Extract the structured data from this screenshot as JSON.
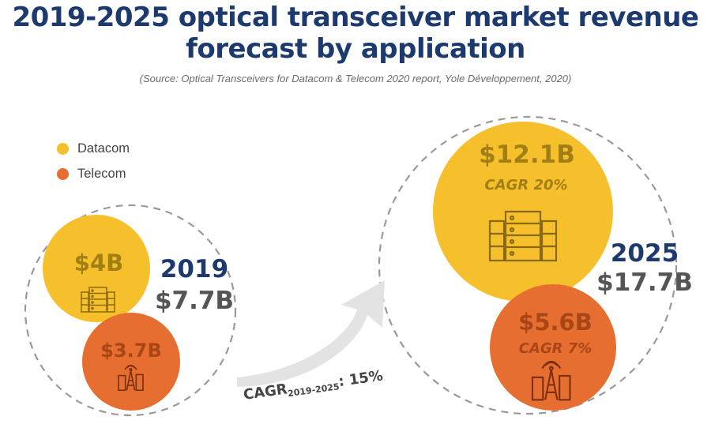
{
  "title_line1": "2019-2025 optical transceiver market revenue",
  "title_line2": "forecast by application",
  "source": "(Source: Optical Transceivers for Datacom & Telecom 2020 report, Yole Développement, 2020)",
  "legend": [
    {
      "name": "Datacom",
      "color": "#f6c02d"
    },
    {
      "name": "Telecom",
      "color": "#e66e30"
    }
  ],
  "icons": {
    "datacom": "server-rack-icon",
    "telecom": "cell-tower-city-icon"
  },
  "chart_data": {
    "type": "bubble",
    "unit": "$B",
    "categories": [
      "2019",
      "2025"
    ],
    "series": [
      {
        "name": "Datacom",
        "values": [
          4,
          12.1
        ]
      },
      {
        "name": "Telecom",
        "values": [
          3.7,
          5.6
        ]
      }
    ],
    "years": [
      {
        "year": "2019",
        "total_label": "$7.7B",
        "datacom_label": "$4B",
        "telecom_label": "$3.7B",
        "datacom_cagr": "",
        "telecom_cagr": ""
      },
      {
        "year": "2025",
        "total_label": "$17.7B",
        "datacom_label": "$12.1B",
        "telecom_label": "$5.6B",
        "datacom_cagr": "CAGR 20%",
        "telecom_cagr": "CAGR 7%"
      }
    ],
    "overall_cagr": {
      "main": "CAGR",
      "subscript": "2019-2025",
      "value": ": 15%"
    },
    "colors": {
      "datacom_text": "#a27f14",
      "telecom_text": "#a94616",
      "dashed": "#9a9a9a",
      "arrow": "#e3e3e3"
    }
  }
}
